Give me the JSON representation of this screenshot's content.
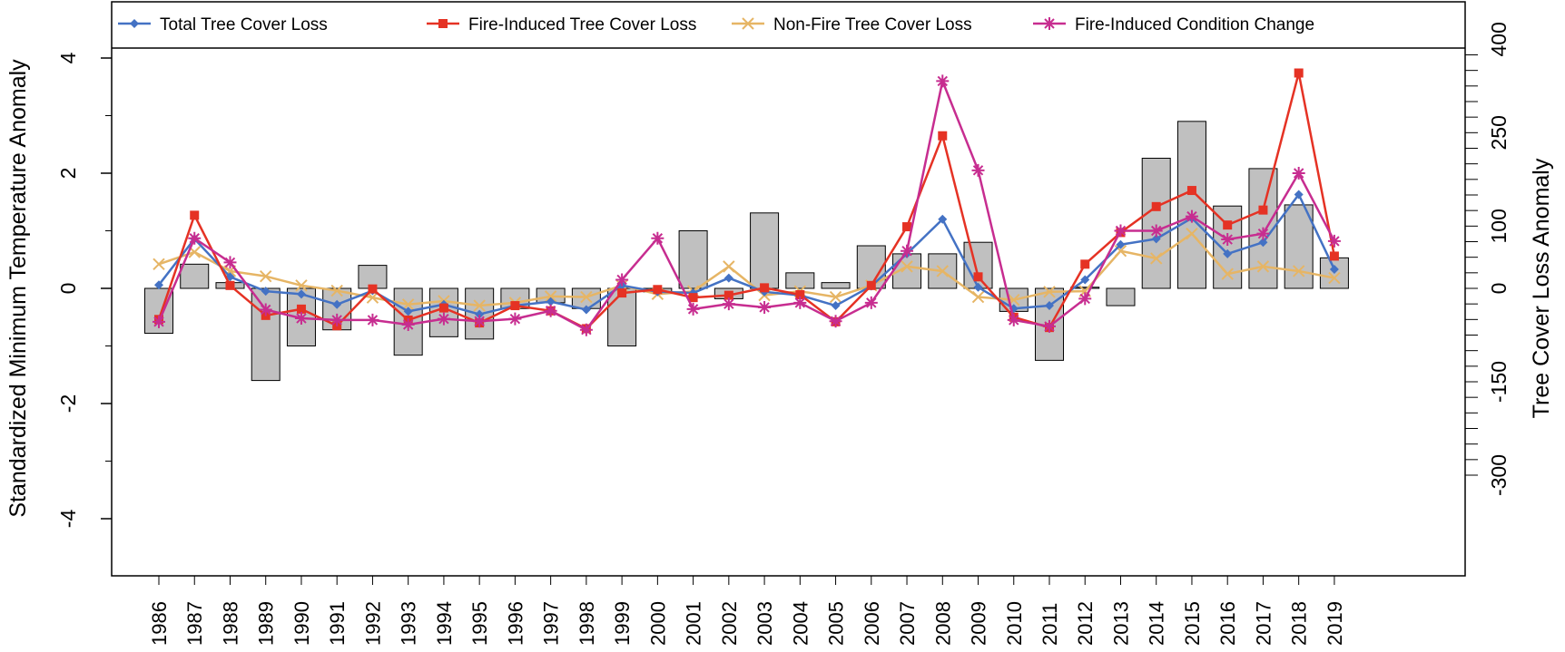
{
  "chart_data": {
    "type": "bar+line",
    "title": "",
    "categories": [
      "1986",
      "1987",
      "1988",
      "1989",
      "1990",
      "1991",
      "1992",
      "1993",
      "1994",
      "1995",
      "1996",
      "1997",
      "1998",
      "1999",
      "2000",
      "2001",
      "2002",
      "2003",
      "2004",
      "2005",
      "2006",
      "2007",
      "2008",
      "2009",
      "2010",
      "2011",
      "2012",
      "2013",
      "2014",
      "2015",
      "2016",
      "2017",
      "2018",
      "2019"
    ],
    "left_axis": {
      "label": "Standardized Minimum Temperature Anomaly",
      "ylim": [
        -4,
        4
      ],
      "ticks": [
        "-4",
        "-2",
        "0",
        "2",
        "4"
      ]
    },
    "right_axis": {
      "label": "Tree Cover Loss Anomaly",
      "ylim": [
        -300,
        400
      ],
      "ticks": [
        "-300",
        "-150",
        "0",
        "100",
        "250",
        "400"
      ]
    },
    "bars": {
      "axis": "left",
      "color": "#c0c0c0",
      "values": [
        -0.78,
        0.42,
        0.1,
        -1.6,
        -1.0,
        -0.72,
        0.4,
        -1.16,
        -0.84,
        -0.88,
        -0.35,
        -0.25,
        -0.35,
        -1.0,
        -0.06,
        1.0,
        -0.18,
        1.31,
        0.27,
        0.1,
        0.74,
        0.6,
        0.6,
        0.8,
        -0.4,
        -1.25,
        0.02,
        -0.3,
        2.26,
        2.9,
        1.43,
        2.08,
        1.45,
        0.53
      ]
    },
    "series": [
      {
        "name": "Total Tree Cover Loss",
        "color": "#4472c4",
        "marker": "diamond",
        "values": [
          0.06,
          0.86,
          0.2,
          -0.05,
          -0.1,
          -0.28,
          -0.04,
          -0.4,
          -0.28,
          -0.45,
          -0.3,
          -0.23,
          -0.37,
          0.05,
          -0.06,
          -0.08,
          0.18,
          -0.06,
          -0.12,
          -0.3,
          0.04,
          0.6,
          1.2,
          0.02,
          -0.35,
          -0.3,
          0.15,
          0.76,
          0.86,
          1.22,
          0.6,
          0.8,
          1.63,
          0.33
        ]
      },
      {
        "name": "Fire-Induced Tree Cover Loss",
        "color": "#e53224",
        "marker": "square",
        "values": [
          -0.54,
          1.27,
          0.05,
          -0.47,
          -0.36,
          -0.65,
          -0.01,
          -0.55,
          -0.34,
          -0.6,
          -0.3,
          -0.39,
          -0.7,
          -0.08,
          -0.02,
          -0.16,
          -0.12,
          0.01,
          -0.11,
          -0.58,
          0.05,
          1.07,
          2.65,
          0.2,
          -0.5,
          -0.68,
          0.42,
          0.97,
          1.42,
          1.7,
          1.1,
          1.36,
          3.74,
          0.56
        ]
      },
      {
        "name": "Non-Fire Tree Cover Loss",
        "color": "#e6b565",
        "marker": "x",
        "values": [
          0.42,
          0.63,
          0.3,
          0.21,
          0.05,
          -0.04,
          -0.16,
          -0.28,
          -0.22,
          -0.3,
          -0.25,
          -0.14,
          -0.15,
          0.05,
          -0.1,
          -0.05,
          0.38,
          -0.12,
          -0.05,
          -0.15,
          0.05,
          0.38,
          0.3,
          -0.15,
          -0.2,
          -0.06,
          -0.05,
          0.65,
          0.52,
          0.95,
          0.25,
          0.38,
          0.3,
          0.18
        ]
      },
      {
        "name": "Fire-Induced Condition Change",
        "color": "#c72d90",
        "marker": "star",
        "values": [
          -0.58,
          0.87,
          0.45,
          -0.37,
          -0.52,
          -0.55,
          -0.55,
          -0.63,
          -0.53,
          -0.57,
          -0.53,
          -0.39,
          -0.72,
          0.15,
          0.87,
          -0.36,
          -0.27,
          -0.33,
          -0.25,
          -0.57,
          -0.25,
          0.65,
          3.6,
          2.05,
          -0.55,
          -0.66,
          -0.18,
          1.0,
          1.0,
          1.25,
          0.85,
          0.95,
          2.0,
          0.82
        ]
      }
    ],
    "legend": {
      "position": "top",
      "entries": [
        "Total Tree Cover Loss",
        "Fire-Induced Tree Cover Loss",
        "Non-Fire Tree Cover Loss",
        "Fire-Induced Condition Change"
      ]
    },
    "grid": false
  }
}
